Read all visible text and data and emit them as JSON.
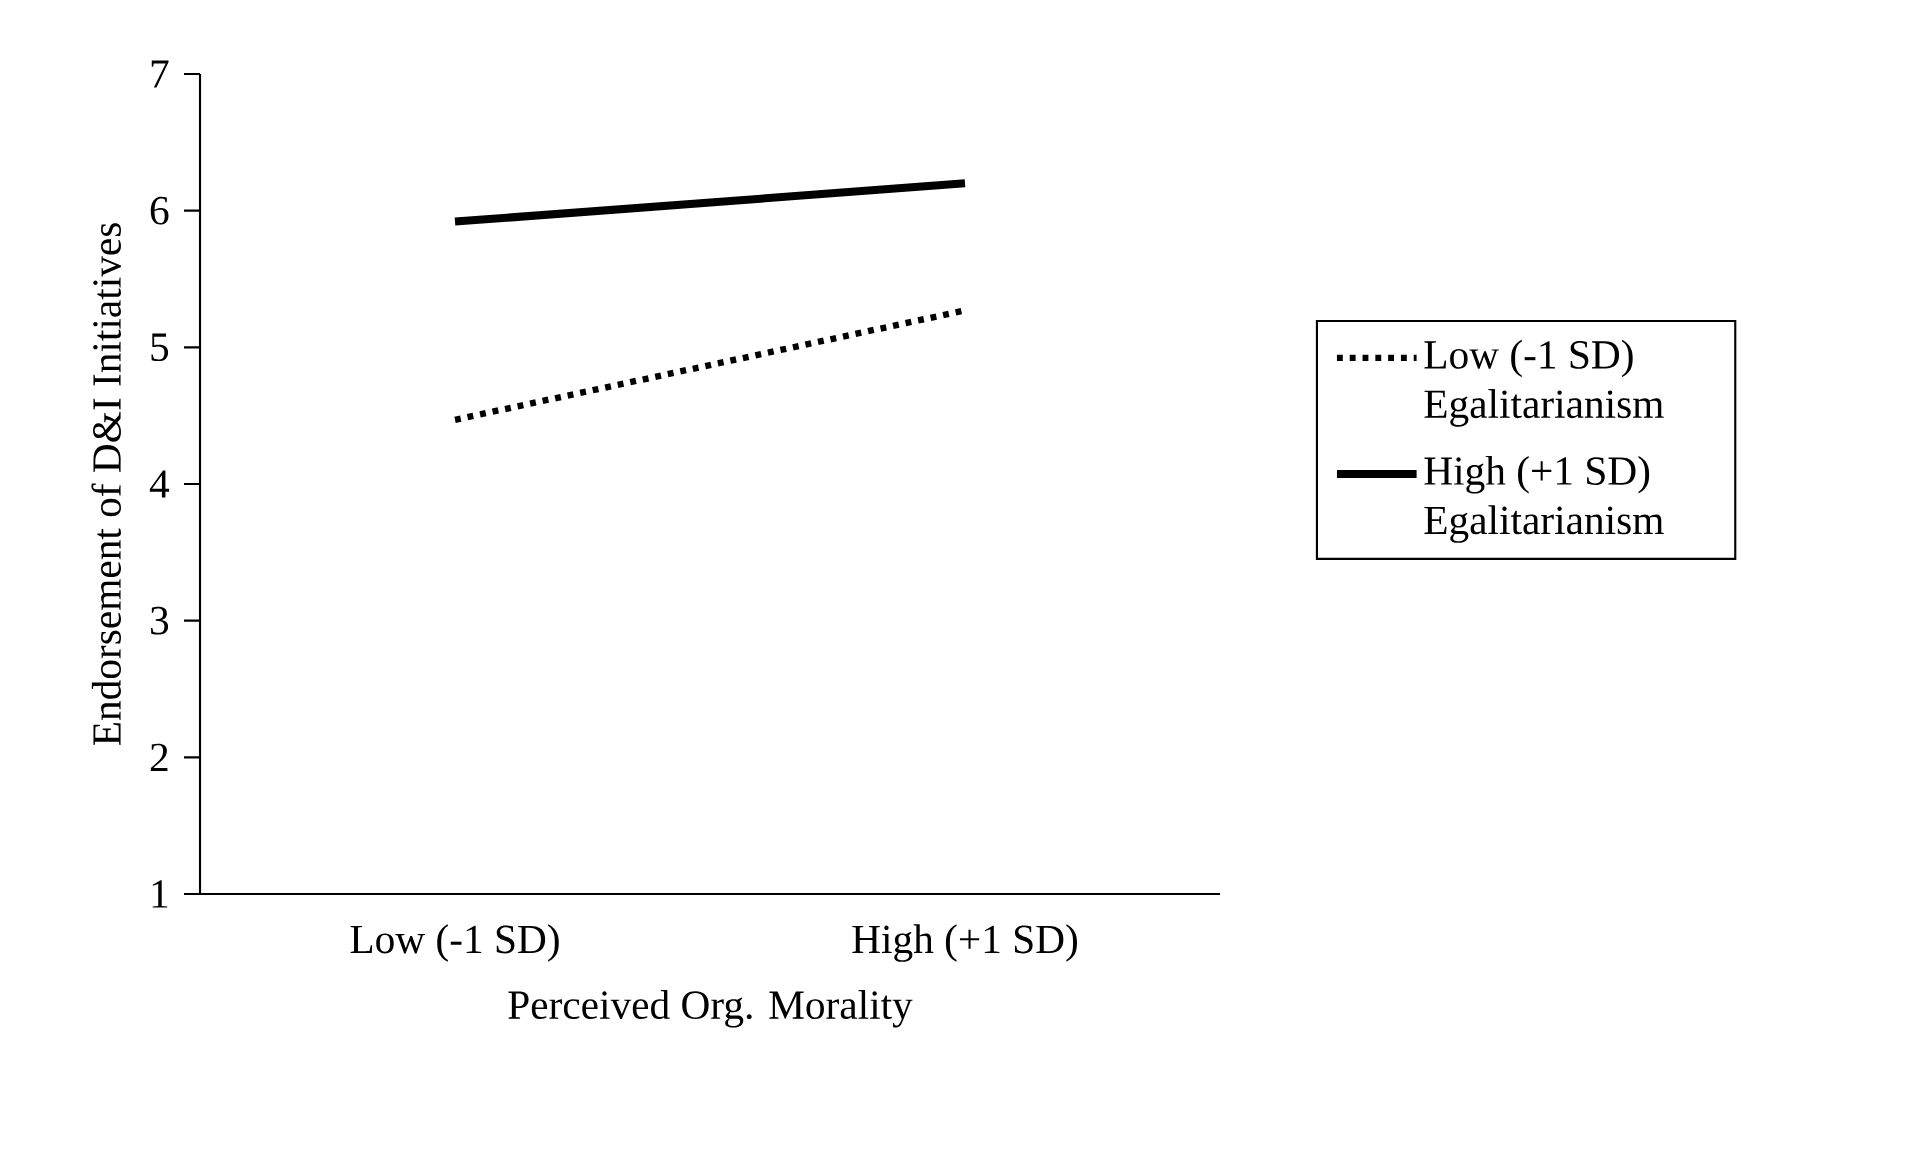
{
  "chart_data": {
    "type": "line",
    "xlabel": "Perceived Org. Morality",
    "ylabel": "Endorsement of D&I Initiatives",
    "categories": [
      "Low (-1 SD)",
      "High (+1 SD)"
    ],
    "series": [
      {
        "name": "Low (-1 SD) Egalitarianism",
        "color": "#000000",
        "line_style": "dotted",
        "values": [
          4.47,
          5.27
        ]
      },
      {
        "name": "High (+1 SD) Egalitarianism",
        "color": "#000000",
        "line_style": "solid",
        "values": [
          5.92,
          6.2
        ]
      }
    ],
    "ylim": [
      1,
      7
    ],
    "yticks": [
      1,
      2,
      3,
      4,
      5,
      6,
      7
    ],
    "legend": "right",
    "marker": "none"
  }
}
